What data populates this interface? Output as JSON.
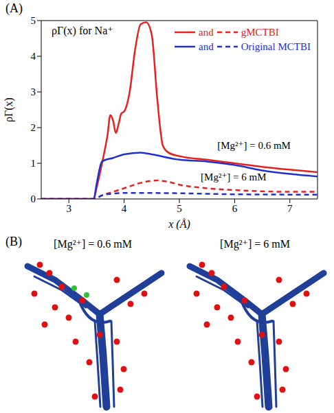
{
  "panel_a_label": "(A)",
  "chart_data": {
    "type": "line",
    "annotation_title": {
      "text": "ρΓ(x) for Na⁺",
      "x": 2.6,
      "y": 4.72
    },
    "xlabel": "x (Å)",
    "ylabel": "ρΓ(x)",
    "xlim": [
      2.5,
      7.5
    ],
    "xticks": [
      3,
      4,
      5,
      6,
      7
    ],
    "ylim": [
      0,
      5
    ],
    "yticks": [
      0,
      1,
      2,
      3,
      4,
      5
    ],
    "legend": "top-right",
    "legend_joiner": "and",
    "series": [
      {
        "name": "gMCTBI",
        "color": "#e8201c",
        "line_style": "solid",
        "x": [
          2.5,
          3.4,
          3.45,
          3.5,
          3.6,
          3.7,
          3.75,
          3.8,
          3.85,
          3.9,
          3.95,
          4.0,
          4.1,
          4.2,
          4.3,
          4.4,
          4.5,
          4.6,
          4.7,
          4.8,
          5.0,
          5.5,
          6.0,
          6.5,
          7.0,
          7.5
        ],
        "values": [
          0,
          0,
          0,
          0.3,
          1.0,
          1.8,
          2.35,
          2.2,
          1.85,
          2.1,
          2.4,
          2.45,
          3.0,
          4.2,
          4.9,
          4.95,
          4.6,
          2.8,
          1.5,
          1.3,
          1.2,
          1.1,
          1.0,
          0.9,
          0.82,
          0.75
        ]
      },
      {
        "name": "Original MCTBI",
        "color": "#2030d0",
        "line_style": "solid",
        "x": [
          2.5,
          3.4,
          3.45,
          3.5,
          3.6,
          3.8,
          4.0,
          4.3,
          4.5,
          5.0,
          5.5,
          6.0,
          6.5,
          7.0,
          7.5
        ],
        "values": [
          0,
          0,
          0,
          0.4,
          1.05,
          1.15,
          1.25,
          1.3,
          1.25,
          1.1,
          1.05,
          0.95,
          0.8,
          0.7,
          0.63
        ]
      },
      {
        "name": "gMCTBI",
        "color": "#e8201c",
        "line_style": "dashed",
        "x": [
          2.5,
          3.4,
          3.45,
          3.6,
          3.8,
          4.0,
          4.3,
          4.6,
          4.8,
          5.0,
          5.5,
          6.0,
          7.0,
          7.5
        ],
        "values": [
          0,
          0,
          0,
          0.1,
          0.2,
          0.3,
          0.45,
          0.52,
          0.48,
          0.4,
          0.3,
          0.25,
          0.2,
          0.2
        ]
      },
      {
        "name": "Original MCTBI",
        "color": "#2030d0",
        "line_style": "dashed",
        "x": [
          2.5,
          3.4,
          3.45,
          3.6,
          3.8,
          4.0,
          5.0,
          6.0,
          7.5
        ],
        "values": [
          0,
          0,
          0,
          0.1,
          0.15,
          0.17,
          0.16,
          0.13,
          0.12
        ]
      }
    ],
    "annotations": [
      {
        "text": "[Mg²⁺] = 0.6 mM",
        "x": 5.6,
        "y": 1.5
      },
      {
        "text": "[Mg²⁺] = 6 mM",
        "x": 5.3,
        "y": 0.62
      }
    ]
  },
  "panel_b": {
    "label": "(B)",
    "titles": [
      "[Mg²⁺] = 0.6 mM",
      "[Mg²⁺] = 6 mM"
    ]
  }
}
